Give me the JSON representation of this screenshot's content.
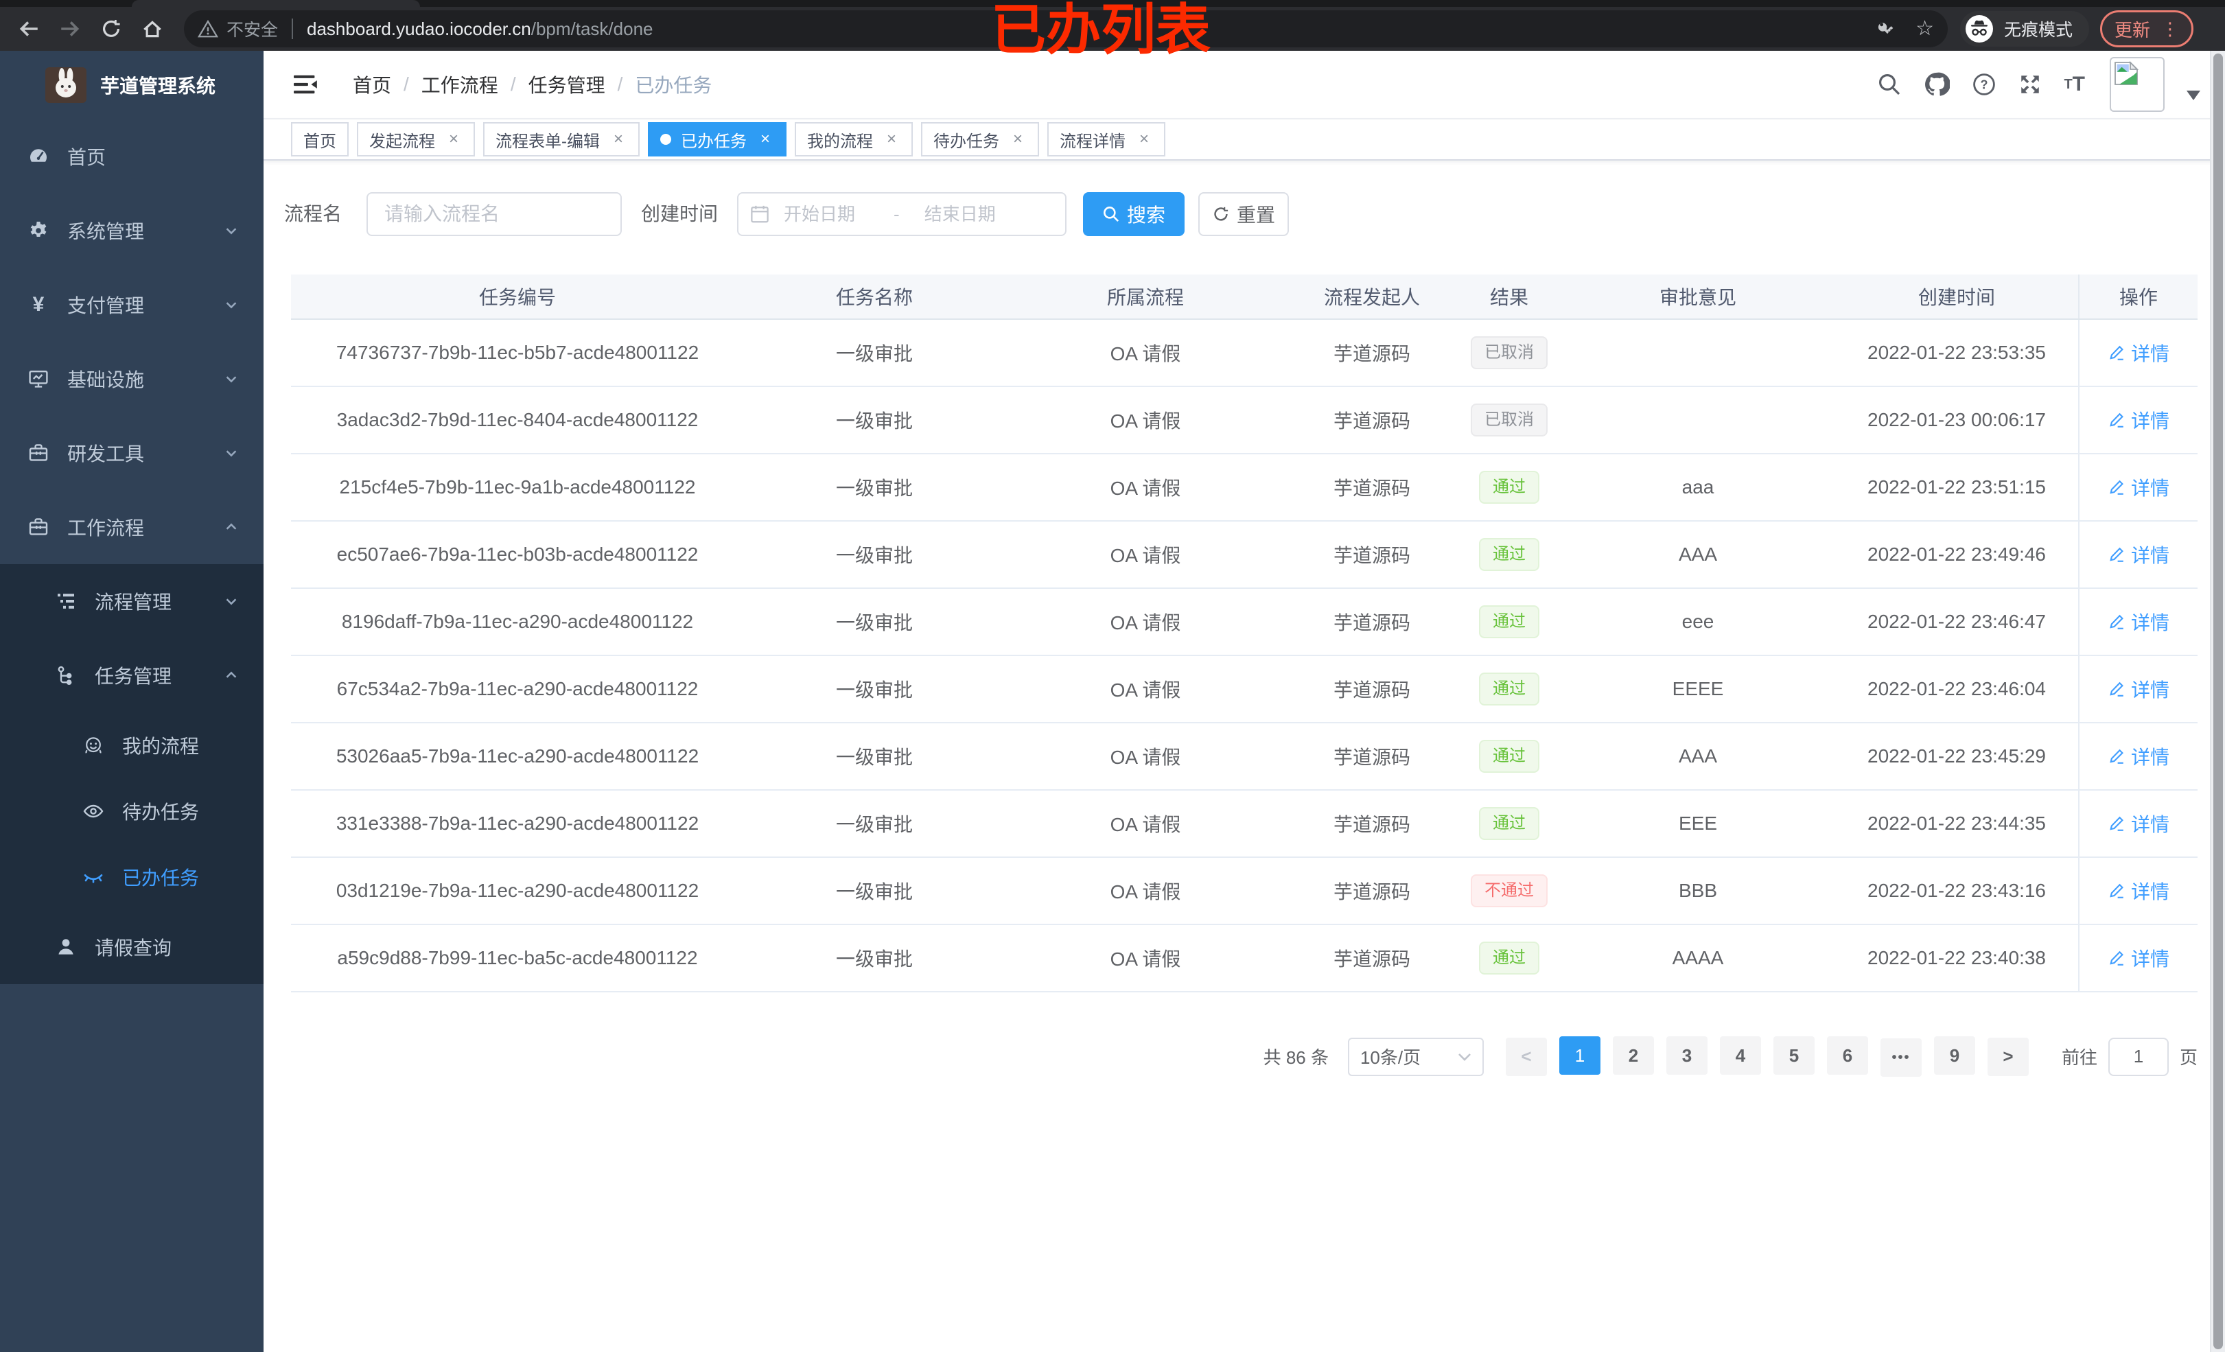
{
  "annotation": {
    "text": "已办列表",
    "color": "#fc2a00"
  },
  "browser": {
    "security": "不安全",
    "url_host": "dashboard.yudao.iocoder.cn",
    "url_path": "/bpm/task/done",
    "incognito": "无痕模式",
    "update": "更新"
  },
  "logo_title": "芋道管理系统",
  "sidebar": [
    {
      "label": "首页",
      "icon": "dashboard-icon",
      "level": 0
    },
    {
      "label": "系统管理",
      "icon": "gear-icon",
      "level": 0,
      "chevron": "down"
    },
    {
      "label": "支付管理",
      "icon": "yen-icon",
      "level": 0,
      "chevron": "down"
    },
    {
      "label": "基础设施",
      "icon": "monitor-icon",
      "level": 0,
      "chevron": "down"
    },
    {
      "label": "研发工具",
      "icon": "toolbox-icon",
      "level": 0,
      "chevron": "down"
    },
    {
      "label": "工作流程",
      "icon": "briefcase-icon",
      "level": 0,
      "chevron": "up"
    },
    {
      "label": "流程管理",
      "icon": "tree-list-icon",
      "level": 1,
      "chevron": "down",
      "dark": true
    },
    {
      "label": "任务管理",
      "icon": "org-tree-icon",
      "level": 1,
      "chevron": "up",
      "dark": true
    },
    {
      "label": "我的流程",
      "icon": "face-icon",
      "level": 2,
      "dark": true
    },
    {
      "label": "待办任务",
      "icon": "eye-open-icon",
      "level": 2,
      "dark": true
    },
    {
      "label": "已办任务",
      "icon": "eye-closed-icon",
      "level": 2,
      "dark": true,
      "active": true
    },
    {
      "label": "请假查询",
      "icon": "user-icon",
      "level": 1,
      "dark": true
    }
  ],
  "breadcrumb": [
    "首页",
    "工作流程",
    "任务管理",
    "已办任务"
  ],
  "tags": [
    {
      "label": "首页",
      "closable": false,
      "active": false
    },
    {
      "label": "发起流程",
      "closable": true,
      "active": false
    },
    {
      "label": "流程表单-编辑",
      "closable": true,
      "active": false
    },
    {
      "label": "已办任务",
      "closable": true,
      "active": true
    },
    {
      "label": "我的流程",
      "closable": true,
      "active": false
    },
    {
      "label": "待办任务",
      "closable": true,
      "active": false
    },
    {
      "label": "流程详情",
      "closable": true,
      "active": false
    }
  ],
  "filter": {
    "name_label": "流程名",
    "name_placeholder": "请输入流程名",
    "time_label": "创建时间",
    "start_placeholder": "开始日期",
    "separator": "-",
    "end_placeholder": "结束日期",
    "search": "搜索",
    "reset": "重置"
  },
  "table": {
    "columns": [
      "任务编号",
      "任务名称",
      "所属流程",
      "流程发起人",
      "结果",
      "审批意见",
      "创建时间",
      "操作"
    ],
    "detail_label": "详情",
    "rows": [
      {
        "id": "74736737-7b9b-11ec-b5b7-acde48001122",
        "name": "一级审批",
        "process": "OA 请假",
        "starter": "芋道源码",
        "result": "已取消",
        "result_type": "info",
        "opinion": "",
        "created": "2022-01-22 23:53:35"
      },
      {
        "id": "3adac3d2-7b9d-11ec-8404-acde48001122",
        "name": "一级审批",
        "process": "OA 请假",
        "starter": "芋道源码",
        "result": "已取消",
        "result_type": "info",
        "opinion": "",
        "created": "2022-01-23 00:06:17"
      },
      {
        "id": "215cf4e5-7b9b-11ec-9a1b-acde48001122",
        "name": "一级审批",
        "process": "OA 请假",
        "starter": "芋道源码",
        "result": "通过",
        "result_type": "success",
        "opinion": "aaa",
        "created": "2022-01-22 23:51:15"
      },
      {
        "id": "ec507ae6-7b9a-11ec-b03b-acde48001122",
        "name": "一级审批",
        "process": "OA 请假",
        "starter": "芋道源码",
        "result": "通过",
        "result_type": "success",
        "opinion": "AAA",
        "created": "2022-01-22 23:49:46"
      },
      {
        "id": "8196daff-7b9a-11ec-a290-acde48001122",
        "name": "一级审批",
        "process": "OA 请假",
        "starter": "芋道源码",
        "result": "通过",
        "result_type": "success",
        "opinion": "eee",
        "created": "2022-01-22 23:46:47"
      },
      {
        "id": "67c534a2-7b9a-11ec-a290-acde48001122",
        "name": "一级审批",
        "process": "OA 请假",
        "starter": "芋道源码",
        "result": "通过",
        "result_type": "success",
        "opinion": "EEEE",
        "created": "2022-01-22 23:46:04"
      },
      {
        "id": "53026aa5-7b9a-11ec-a290-acde48001122",
        "name": "一级审批",
        "process": "OA 请假",
        "starter": "芋道源码",
        "result": "通过",
        "result_type": "success",
        "opinion": "AAA",
        "created": "2022-01-22 23:45:29"
      },
      {
        "id": "331e3388-7b9a-11ec-a290-acde48001122",
        "name": "一级审批",
        "process": "OA 请假",
        "starter": "芋道源码",
        "result": "通过",
        "result_type": "success",
        "opinion": "EEE",
        "created": "2022-01-22 23:44:35"
      },
      {
        "id": "03d1219e-7b9a-11ec-a290-acde48001122",
        "name": "一级审批",
        "process": "OA 请假",
        "starter": "芋道源码",
        "result": "不通过",
        "result_type": "danger",
        "opinion": "BBB",
        "created": "2022-01-22 23:43:16"
      },
      {
        "id": "a59c9d88-7b99-11ec-ba5c-acde48001122",
        "name": "一级审批",
        "process": "OA 请假",
        "starter": "芋道源码",
        "result": "通过",
        "result_type": "success",
        "opinion": "AAAA",
        "created": "2022-01-22 23:40:38"
      }
    ]
  },
  "pagination": {
    "total": "共 86 条",
    "page_size": "10条/页",
    "pages": [
      "1",
      "2",
      "3",
      "4",
      "5",
      "6",
      "•••",
      "9"
    ],
    "active_page": "1",
    "goto_label": "前往",
    "goto_value": "1",
    "goto_suffix": "页"
  },
  "colors": {
    "accent": "#409eff",
    "solid_blue": "#2e9cf4",
    "success": "#67c23a",
    "danger": "#f56c6c",
    "info": "#909399",
    "sidebar_bg": "#304156",
    "submenu_bg": "#1f2d3d",
    "annotation_red": "#fc2a00",
    "update_button": "#f08b82"
  }
}
